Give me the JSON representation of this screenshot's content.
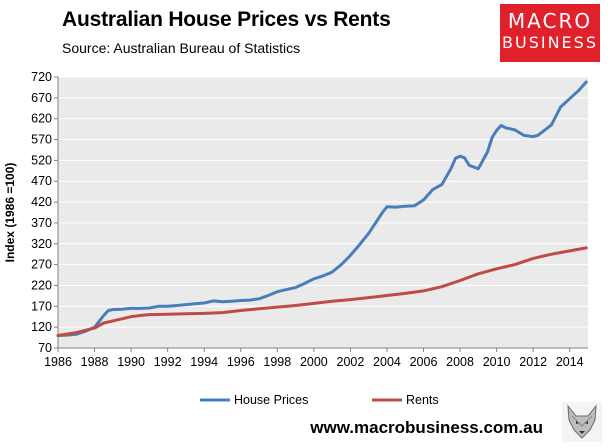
{
  "header": {
    "title": "Australian House Prices vs Rents",
    "subtitle": "Source: Australian Bureau of Statistics"
  },
  "logo": {
    "line1": "MACRO",
    "line2": "BUSINESS",
    "bg": "#e0202a"
  },
  "footer": {
    "url": "www.macrobusiness.com.au"
  },
  "chart_data": {
    "type": "line",
    "title": "Australian House Prices vs Rents",
    "ylabel": "Index (1986 =100)",
    "xlabel": "",
    "xlim": [
      1986,
      2015
    ],
    "ylim": [
      70,
      720
    ],
    "yticks": [
      70,
      120,
      170,
      220,
      270,
      320,
      370,
      420,
      470,
      520,
      570,
      620,
      670,
      720
    ],
    "xticks": [
      1986,
      1988,
      1990,
      1992,
      1994,
      1996,
      1998,
      2000,
      2002,
      2004,
      2006,
      2008,
      2010,
      2012,
      2014
    ],
    "grid": "horizontal",
    "plot_background": "#eaeaea",
    "legend_position": "bottom",
    "series": [
      {
        "name": "House Prices",
        "color": "#4a7ebb",
        "points": [
          [
            1986.0,
            100
          ],
          [
            1986.5,
            101
          ],
          [
            1987.0,
            103
          ],
          [
            1987.5,
            110
          ],
          [
            1988.0,
            120
          ],
          [
            1988.5,
            148
          ],
          [
            1988.75,
            160
          ],
          [
            1989.0,
            162
          ],
          [
            1989.5,
            163
          ],
          [
            1990.0,
            165
          ],
          [
            1990.5,
            165
          ],
          [
            1991.0,
            166
          ],
          [
            1991.5,
            170
          ],
          [
            1992.0,
            170
          ],
          [
            1992.5,
            172
          ],
          [
            1993.0,
            174
          ],
          [
            1993.5,
            176
          ],
          [
            1994.0,
            178
          ],
          [
            1994.5,
            183
          ],
          [
            1995.0,
            181
          ],
          [
            1995.5,
            182
          ],
          [
            1996.0,
            184
          ],
          [
            1996.5,
            185
          ],
          [
            1997.0,
            188
          ],
          [
            1997.5,
            196
          ],
          [
            1998.0,
            205
          ],
          [
            1998.5,
            210
          ],
          [
            1999.0,
            215
          ],
          [
            1999.5,
            225
          ],
          [
            2000.0,
            236
          ],
          [
            2000.5,
            243
          ],
          [
            2001.0,
            252
          ],
          [
            2001.5,
            270
          ],
          [
            2002.0,
            292
          ],
          [
            2002.5,
            318
          ],
          [
            2003.0,
            345
          ],
          [
            2003.5,
            378
          ],
          [
            2003.75,
            395
          ],
          [
            2004.0,
            409
          ],
          [
            2004.5,
            408
          ],
          [
            2005.0,
            410
          ],
          [
            2005.5,
            411
          ],
          [
            2006.0,
            425
          ],
          [
            2006.5,
            450
          ],
          [
            2007.0,
            462
          ],
          [
            2007.5,
            500
          ],
          [
            2007.75,
            525
          ],
          [
            2008.0,
            530
          ],
          [
            2008.25,
            526
          ],
          [
            2008.5,
            508
          ],
          [
            2009.0,
            500
          ],
          [
            2009.5,
            540
          ],
          [
            2009.75,
            575
          ],
          [
            2010.0,
            592
          ],
          [
            2010.25,
            604
          ],
          [
            2010.5,
            598
          ],
          [
            2011.0,
            593
          ],
          [
            2011.5,
            580
          ],
          [
            2012.0,
            577
          ],
          [
            2012.25,
            580
          ],
          [
            2012.5,
            588
          ],
          [
            2013.0,
            605
          ],
          [
            2013.5,
            648
          ],
          [
            2014.0,
            668
          ],
          [
            2014.5,
            688
          ],
          [
            2014.9,
            708
          ]
        ]
      },
      {
        "name": "Rents",
        "color": "#be4b48",
        "points": [
          [
            1986.0,
            100
          ],
          [
            1987.0,
            107
          ],
          [
            1988.0,
            118
          ],
          [
            1988.5,
            130
          ],
          [
            1989.0,
            135
          ],
          [
            1989.5,
            140
          ],
          [
            1990.0,
            145
          ],
          [
            1990.5,
            148
          ],
          [
            1991.0,
            150
          ],
          [
            1992.0,
            151
          ],
          [
            1993.0,
            152
          ],
          [
            1994.0,
            153
          ],
          [
            1995.0,
            155
          ],
          [
            1996.0,
            160
          ],
          [
            1997.0,
            164
          ],
          [
            1998.0,
            168
          ],
          [
            1999.0,
            172
          ],
          [
            2000.0,
            177
          ],
          [
            2001.0,
            182
          ],
          [
            2002.0,
            186
          ],
          [
            2003.0,
            191
          ],
          [
            2004.0,
            196
          ],
          [
            2005.0,
            201
          ],
          [
            2006.0,
            207
          ],
          [
            2007.0,
            217
          ],
          [
            2008.0,
            232
          ],
          [
            2009.0,
            248
          ],
          [
            2010.0,
            260
          ],
          [
            2011.0,
            270
          ],
          [
            2012.0,
            285
          ],
          [
            2013.0,
            295
          ],
          [
            2014.0,
            303
          ],
          [
            2014.9,
            310
          ]
        ]
      }
    ]
  }
}
